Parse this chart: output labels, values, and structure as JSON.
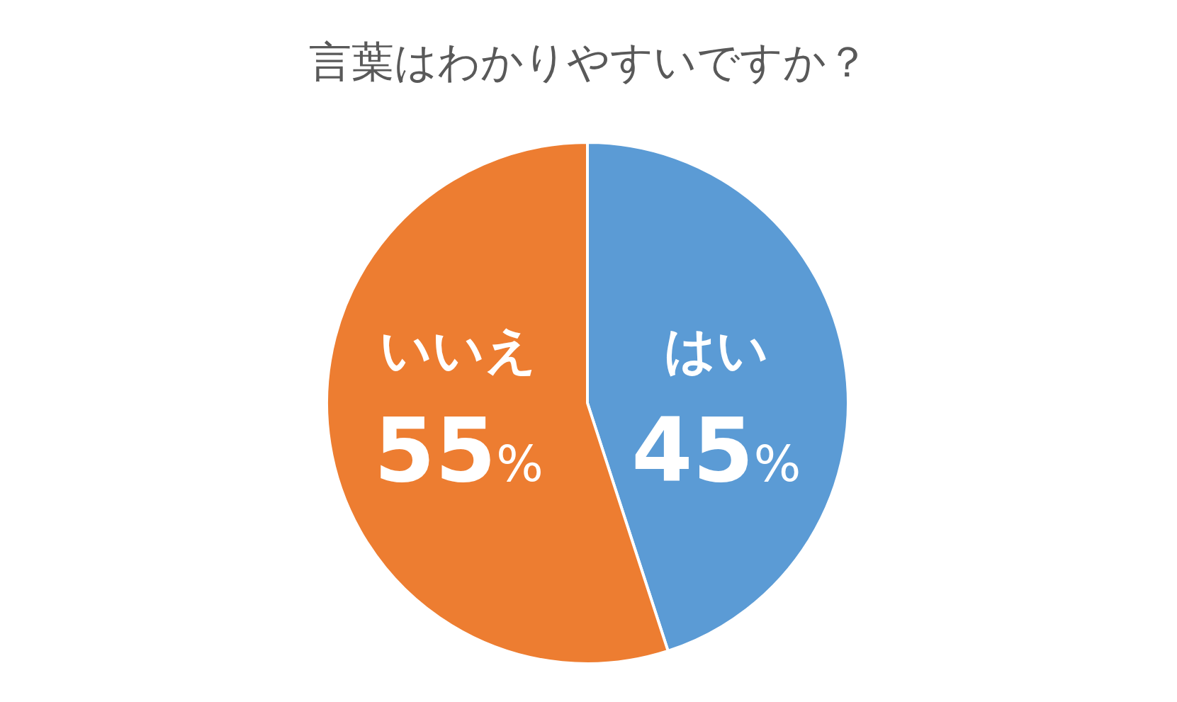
{
  "chart_data": {
    "type": "pie",
    "title": "言葉はわかりやすいですか？",
    "categories": [
      "はい",
      "いいえ"
    ],
    "values": [
      45,
      55
    ],
    "colors": [
      "#5b9bd5",
      "#ed7d31"
    ],
    "value_labels": [
      "45%",
      "55%"
    ]
  }
}
